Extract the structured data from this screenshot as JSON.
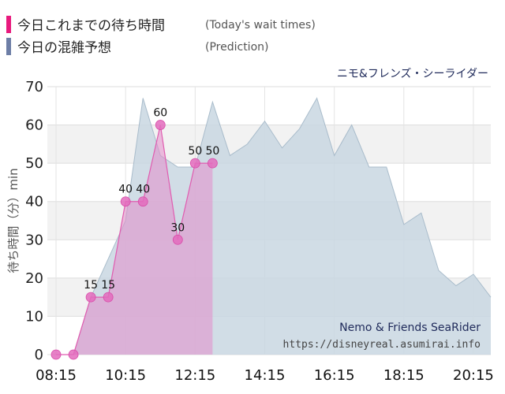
{
  "legend": {
    "items": [
      {
        "label": "今日これまでの待ち時間",
        "sub": "(Today's wait times)",
        "color": "#e8197d"
      },
      {
        "label": "今日の混雑予想",
        "sub": "(Prediction)",
        "color": "#6d7ea6"
      }
    ]
  },
  "chart_data": {
    "type": "area",
    "title": "ニモ&フレンズ・シーライダー",
    "ylabel": "待ち時間（分）min",
    "xlabel": "",
    "ylim": [
      0,
      70
    ],
    "yticks": [
      0,
      10,
      20,
      30,
      40,
      50,
      60,
      70
    ],
    "xticks": [
      "08:15",
      "10:15",
      "12:15",
      "14:15",
      "16:15",
      "18:15",
      "20:15"
    ],
    "grid": true,
    "x_range": [
      "08:00",
      "20:45"
    ],
    "series": [
      {
        "name": "今日の混雑予想",
        "type": "area",
        "color": "#c9d7e2",
        "points": [
          [
            "08:15",
            0
          ],
          [
            "08:45",
            0
          ],
          [
            "09:15",
            15
          ],
          [
            "09:45",
            25
          ],
          [
            "10:15",
            35
          ],
          [
            "10:45",
            67
          ],
          [
            "11:15",
            52
          ],
          [
            "11:45",
            49
          ],
          [
            "12:15",
            49
          ],
          [
            "12:45",
            66
          ],
          [
            "13:15",
            52
          ],
          [
            "13:45",
            55
          ],
          [
            "14:15",
            61
          ],
          [
            "14:45",
            54
          ],
          [
            "15:15",
            59
          ],
          [
            "15:45",
            67
          ],
          [
            "16:15",
            52
          ],
          [
            "16:45",
            60
          ],
          [
            "17:15",
            49
          ],
          [
            "17:45",
            49
          ],
          [
            "18:15",
            34
          ],
          [
            "18:45",
            37
          ],
          [
            "19:15",
            22
          ],
          [
            "19:45",
            18
          ],
          [
            "20:15",
            21
          ],
          [
            "20:45",
            15
          ]
        ]
      },
      {
        "name": "今日これまでの待ち時間",
        "type": "line-area",
        "color": "#e8197d",
        "points": [
          [
            "08:15",
            0
          ],
          [
            "08:45",
            0
          ],
          [
            "09:15",
            15
          ],
          [
            "09:45",
            15
          ],
          [
            "10:15",
            40
          ],
          [
            "10:45",
            40
          ],
          [
            "11:15",
            60
          ],
          [
            "11:45",
            30
          ],
          [
            "12:15",
            50
          ],
          [
            "12:45",
            50
          ]
        ],
        "labels": [
          "",
          "",
          "15",
          "15",
          "40",
          "40",
          "60",
          "30",
          "50",
          "50"
        ]
      }
    ],
    "annotations": [
      "Nemo & Friends SeaRider",
      "https://disneyreal.asumirai.info"
    ]
  }
}
